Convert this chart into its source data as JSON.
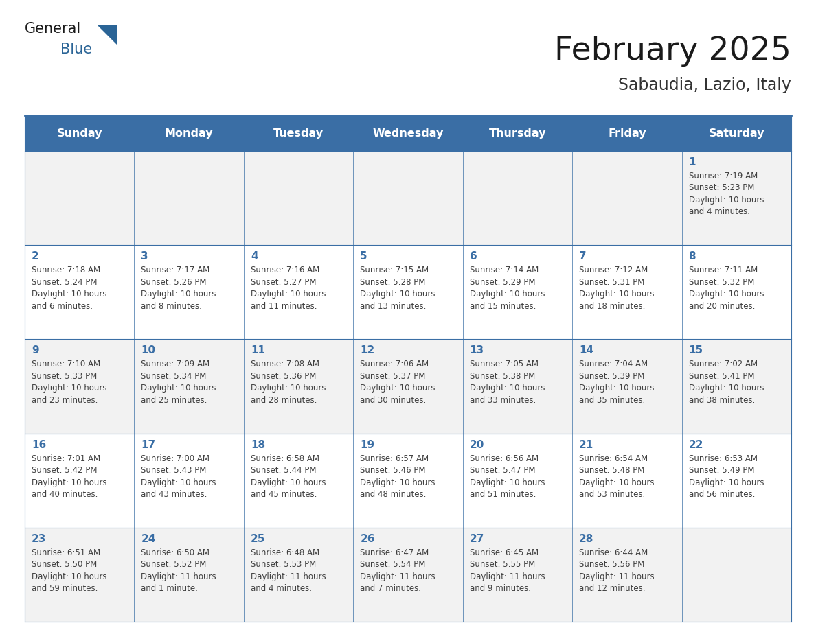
{
  "title": "February 2025",
  "subtitle": "Sabaudia, Lazio, Italy",
  "days_of_week": [
    "Sunday",
    "Monday",
    "Tuesday",
    "Wednesday",
    "Thursday",
    "Friday",
    "Saturday"
  ],
  "header_bg": "#3a6ea5",
  "header_text": "#ffffff",
  "row_bg": [
    "#f2f2f2",
    "#ffffff",
    "#f2f2f2",
    "#ffffff",
    "#f2f2f2"
  ],
  "cell_border": "#3a6ea5",
  "day_num_color": "#3a6ea5",
  "info_text_color": "#404040",
  "title_color": "#1a1a1a",
  "subtitle_color": "#333333",
  "logo_general_color": "#1a1a1a",
  "logo_blue_color": "#2a6496",
  "logo_triangle_color": "#2a6496",
  "calendar": [
    [
      null,
      null,
      null,
      null,
      null,
      null,
      {
        "day": 1,
        "sunrise": "7:19 AM",
        "sunset": "5:23 PM",
        "daylight": "10 hours",
        "daylight2": "and 4 minutes."
      }
    ],
    [
      {
        "day": 2,
        "sunrise": "7:18 AM",
        "sunset": "5:24 PM",
        "daylight": "10 hours",
        "daylight2": "and 6 minutes."
      },
      {
        "day": 3,
        "sunrise": "7:17 AM",
        "sunset": "5:26 PM",
        "daylight": "10 hours",
        "daylight2": "and 8 minutes."
      },
      {
        "day": 4,
        "sunrise": "7:16 AM",
        "sunset": "5:27 PM",
        "daylight": "10 hours",
        "daylight2": "and 11 minutes."
      },
      {
        "day": 5,
        "sunrise": "7:15 AM",
        "sunset": "5:28 PM",
        "daylight": "10 hours",
        "daylight2": "and 13 minutes."
      },
      {
        "day": 6,
        "sunrise": "7:14 AM",
        "sunset": "5:29 PM",
        "daylight": "10 hours",
        "daylight2": "and 15 minutes."
      },
      {
        "day": 7,
        "sunrise": "7:12 AM",
        "sunset": "5:31 PM",
        "daylight": "10 hours",
        "daylight2": "and 18 minutes."
      },
      {
        "day": 8,
        "sunrise": "7:11 AM",
        "sunset": "5:32 PM",
        "daylight": "10 hours",
        "daylight2": "and 20 minutes."
      }
    ],
    [
      {
        "day": 9,
        "sunrise": "7:10 AM",
        "sunset": "5:33 PM",
        "daylight": "10 hours",
        "daylight2": "and 23 minutes."
      },
      {
        "day": 10,
        "sunrise": "7:09 AM",
        "sunset": "5:34 PM",
        "daylight": "10 hours",
        "daylight2": "and 25 minutes."
      },
      {
        "day": 11,
        "sunrise": "7:08 AM",
        "sunset": "5:36 PM",
        "daylight": "10 hours",
        "daylight2": "and 28 minutes."
      },
      {
        "day": 12,
        "sunrise": "7:06 AM",
        "sunset": "5:37 PM",
        "daylight": "10 hours",
        "daylight2": "and 30 minutes."
      },
      {
        "day": 13,
        "sunrise": "7:05 AM",
        "sunset": "5:38 PM",
        "daylight": "10 hours",
        "daylight2": "and 33 minutes."
      },
      {
        "day": 14,
        "sunrise": "7:04 AM",
        "sunset": "5:39 PM",
        "daylight": "10 hours",
        "daylight2": "and 35 minutes."
      },
      {
        "day": 15,
        "sunrise": "7:02 AM",
        "sunset": "5:41 PM",
        "daylight": "10 hours",
        "daylight2": "and 38 minutes."
      }
    ],
    [
      {
        "day": 16,
        "sunrise": "7:01 AM",
        "sunset": "5:42 PM",
        "daylight": "10 hours",
        "daylight2": "and 40 minutes."
      },
      {
        "day": 17,
        "sunrise": "7:00 AM",
        "sunset": "5:43 PM",
        "daylight": "10 hours",
        "daylight2": "and 43 minutes."
      },
      {
        "day": 18,
        "sunrise": "6:58 AM",
        "sunset": "5:44 PM",
        "daylight": "10 hours",
        "daylight2": "and 45 minutes."
      },
      {
        "day": 19,
        "sunrise": "6:57 AM",
        "sunset": "5:46 PM",
        "daylight": "10 hours",
        "daylight2": "and 48 minutes."
      },
      {
        "day": 20,
        "sunrise": "6:56 AM",
        "sunset": "5:47 PM",
        "daylight": "10 hours",
        "daylight2": "and 51 minutes."
      },
      {
        "day": 21,
        "sunrise": "6:54 AM",
        "sunset": "5:48 PM",
        "daylight": "10 hours",
        "daylight2": "and 53 minutes."
      },
      {
        "day": 22,
        "sunrise": "6:53 AM",
        "sunset": "5:49 PM",
        "daylight": "10 hours",
        "daylight2": "and 56 minutes."
      }
    ],
    [
      {
        "day": 23,
        "sunrise": "6:51 AM",
        "sunset": "5:50 PM",
        "daylight": "10 hours",
        "daylight2": "and 59 minutes."
      },
      {
        "day": 24,
        "sunrise": "6:50 AM",
        "sunset": "5:52 PM",
        "daylight": "11 hours",
        "daylight2": "and 1 minute."
      },
      {
        "day": 25,
        "sunrise": "6:48 AM",
        "sunset": "5:53 PM",
        "daylight": "11 hours",
        "daylight2": "and 4 minutes."
      },
      {
        "day": 26,
        "sunrise": "6:47 AM",
        "sunset": "5:54 PM",
        "daylight": "11 hours",
        "daylight2": "and 7 minutes."
      },
      {
        "day": 27,
        "sunrise": "6:45 AM",
        "sunset": "5:55 PM",
        "daylight": "11 hours",
        "daylight2": "and 9 minutes."
      },
      {
        "day": 28,
        "sunrise": "6:44 AM",
        "sunset": "5:56 PM",
        "daylight": "11 hours",
        "daylight2": "and 12 minutes."
      },
      null
    ]
  ]
}
